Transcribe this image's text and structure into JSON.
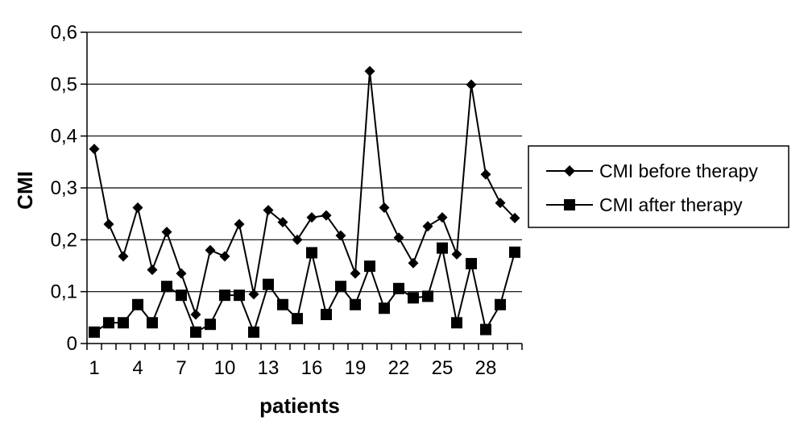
{
  "chart_data": {
    "type": "line",
    "title": "",
    "xlabel": "patients",
    "ylabel": "CMI",
    "x": [
      1,
      2,
      3,
      4,
      5,
      6,
      7,
      8,
      9,
      10,
      11,
      12,
      13,
      14,
      15,
      16,
      17,
      18,
      19,
      20,
      21,
      22,
      23,
      24,
      25,
      26,
      27,
      28,
      29,
      30
    ],
    "x_tick_labels": [
      "1",
      "4",
      "7",
      "10",
      "13",
      "16",
      "19",
      "22",
      "25",
      "28"
    ],
    "y_tick_labels": [
      "0",
      "0,1",
      "0,2",
      "0,3",
      "0,4",
      "0,5",
      "0,6"
    ],
    "ylim": [
      0,
      0.6
    ],
    "grid": "horizontal",
    "legend_position": "right",
    "series": [
      {
        "name": "CMI before therapy",
        "marker": "diamond",
        "color": "#000000",
        "values": [
          0.375,
          0.23,
          0.168,
          0.262,
          0.142,
          0.215,
          0.135,
          0.056,
          0.18,
          0.168,
          0.23,
          0.095,
          0.257,
          0.234,
          0.2,
          0.243,
          0.247,
          0.208,
          0.135,
          0.525,
          0.262,
          0.204,
          0.155,
          0.226,
          0.243,
          0.172,
          0.499,
          0.326,
          0.271,
          0.242
        ]
      },
      {
        "name": "CMI after therapy",
        "marker": "square",
        "color": "#000000",
        "values": [
          0.022,
          0.04,
          0.04,
          0.075,
          0.04,
          0.11,
          0.093,
          0.022,
          0.037,
          0.093,
          0.093,
          0.022,
          0.114,
          0.075,
          0.048,
          0.175,
          0.056,
          0.11,
          0.075,
          0.149,
          0.068,
          0.106,
          0.088,
          0.091,
          0.184,
          0.04,
          0.154,
          0.027,
          0.075,
          0.176
        ]
      }
    ]
  }
}
